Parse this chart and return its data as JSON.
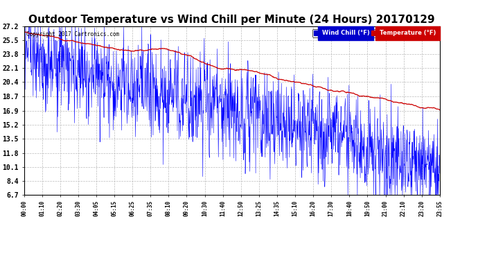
{
  "title": "Outdoor Temperature vs Wind Chill per Minute (24 Hours) 20170129",
  "copyright_text": "Copyright 2017 Cartronics.com",
  "legend_wind_chill": "Wind Chill (°F)",
  "legend_temperature": "Temperature (°F)",
  "ylim": [
    6.7,
    27.2
  ],
  "yticks": [
    6.7,
    8.4,
    10.1,
    11.8,
    13.5,
    15.2,
    16.9,
    18.7,
    20.4,
    22.1,
    23.8,
    25.5,
    27.2
  ],
  "background_color": "#ffffff",
  "plot_bg_color": "#ffffff",
  "grid_color": "#bbbbbb",
  "temp_color": "#0000ff",
  "wind_color": "#cc0000",
  "title_fontsize": 11,
  "num_minutes": 1440,
  "x_tick_labels": [
    "00:00",
    "01:10",
    "02:20",
    "03:30",
    "04:05",
    "05:15",
    "06:25",
    "07:35",
    "08:10",
    "09:20",
    "10:30",
    "11:40",
    "12:50",
    "13:25",
    "14:35",
    "15:10",
    "16:20",
    "17:30",
    "18:40",
    "19:50",
    "21:00",
    "22:10",
    "23:20",
    "23:55"
  ]
}
